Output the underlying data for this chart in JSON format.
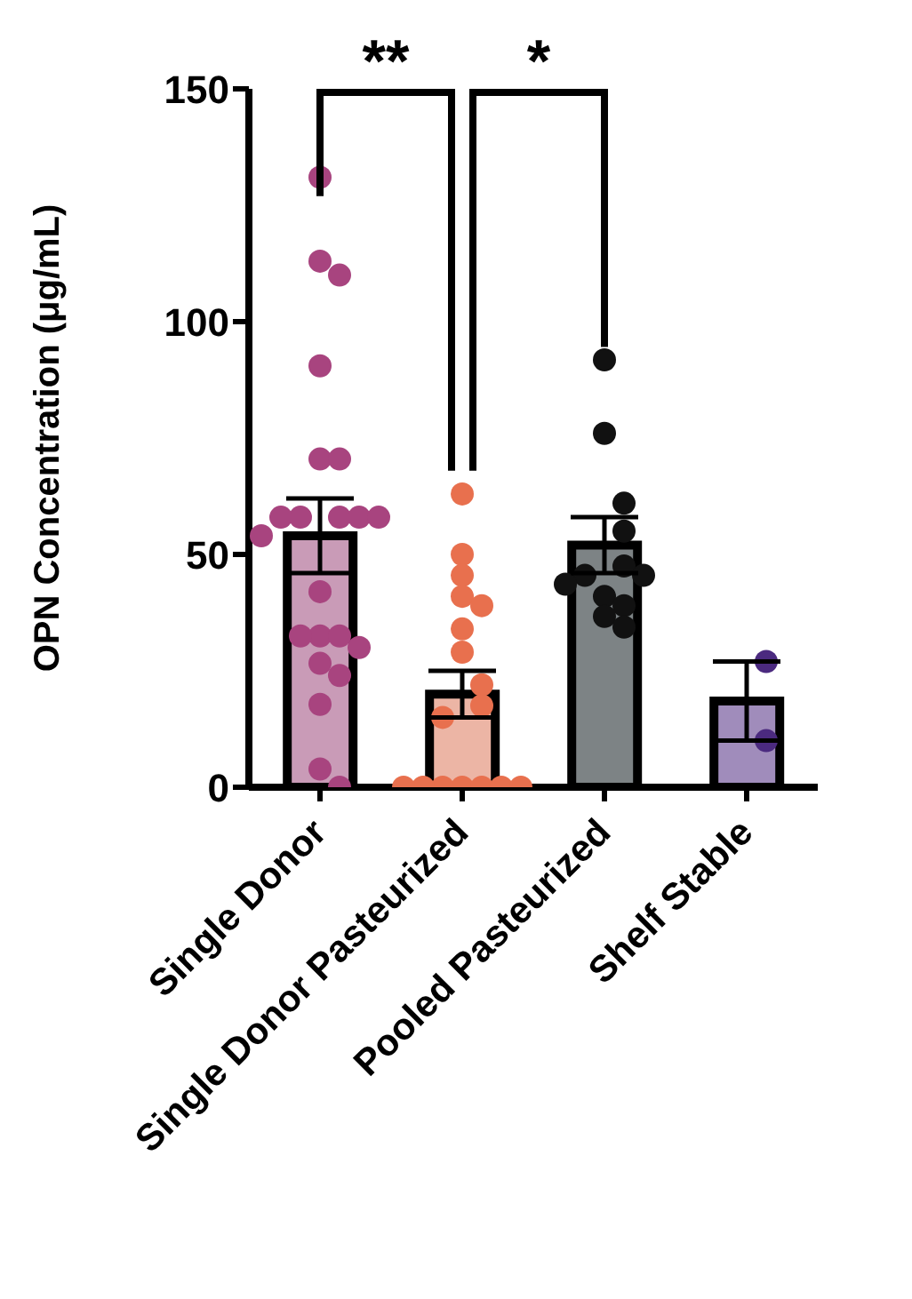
{
  "chart_data": {
    "type": "bar",
    "ylabel": "OPN Concentration  (μg/mL)",
    "categories": [
      "Single Donor",
      "Single Donor Pasteurized",
      "Pooled Pasteurized",
      "Shelf Stable"
    ],
    "series": [
      {
        "type": "bar",
        "values": [
          54,
          20,
          52,
          18.5
        ],
        "colors": [
          "#c99bb7",
          "#ecb5a5",
          "#7d8385",
          "#a08cbb"
        ],
        "errors": [
          8,
          5,
          6,
          8.5
        ]
      },
      {
        "type": "scatter",
        "color": "#a8447f",
        "x": [
          "Single Donor",
          "Single Donor",
          "Single Donor",
          "Single Donor",
          "Single Donor",
          "Single Donor",
          "Single Donor",
          "Single Donor",
          "Single Donor",
          "Single Donor",
          "Single Donor",
          "Single Donor",
          "Single Donor",
          "Single Donor",
          "Single Donor",
          "Single Donor",
          "Single Donor",
          "Single Donor",
          "Single Donor",
          "Single Donor",
          "Single Donor",
          "Single Donor"
        ],
        "values": [
          131,
          113,
          110,
          90.5,
          70.5,
          70.5,
          58,
          58,
          58,
          58,
          58,
          54,
          42,
          32.5,
          32.5,
          32.5,
          30,
          26.6,
          24,
          17.8,
          3.9,
          0
        ]
      },
      {
        "type": "scatter",
        "color": "#e8704e",
        "x": [
          "Single Donor Pasteurized",
          "Single Donor Pasteurized",
          "Single Donor Pasteurized",
          "Single Donor Pasteurized",
          "Single Donor Pasteurized",
          "Single Donor Pasteurized",
          "Single Donor Pasteurized",
          "Single Donor Pasteurized",
          "Single Donor Pasteurized",
          "Single Donor Pasteurized",
          "Single Donor Pasteurized",
          "Single Donor Pasteurized",
          "Single Donor Pasteurized",
          "Single Donor Pasteurized",
          "Single Donor Pasteurized",
          "Single Donor Pasteurized",
          "Single Donor Pasteurized"
        ],
        "values": [
          63,
          50,
          45.5,
          41,
          39,
          34,
          29,
          22,
          17.5,
          15,
          0,
          0,
          0,
          0,
          0,
          0,
          0
        ]
      },
      {
        "type": "scatter",
        "color": "#111111",
        "x": [
          "Pooled Pasteurized",
          "Pooled Pasteurized",
          "Pooled Pasteurized",
          "Pooled Pasteurized",
          "Pooled Pasteurized",
          "Pooled Pasteurized",
          "Pooled Pasteurized",
          "Pooled Pasteurized",
          "Pooled Pasteurized",
          "Pooled Pasteurized",
          "Pooled Pasteurized",
          "Pooled Pasteurized"
        ],
        "values": [
          91.8,
          76,
          61,
          55,
          47.5,
          45.5,
          45.5,
          43.6,
          41,
          39,
          36.7,
          34.4
        ]
      },
      {
        "type": "scatter",
        "color": "#4b2a7f",
        "x": [
          "Shelf Stable",
          "Shelf Stable"
        ],
        "values": [
          27,
          10
        ]
      }
    ],
    "ylim": [
      0,
      150
    ],
    "yticks": [
      0,
      50,
      100,
      150
    ],
    "grid": false,
    "legend": false,
    "marker": "circle",
    "annotations": [
      "**",
      "*"
    ]
  }
}
